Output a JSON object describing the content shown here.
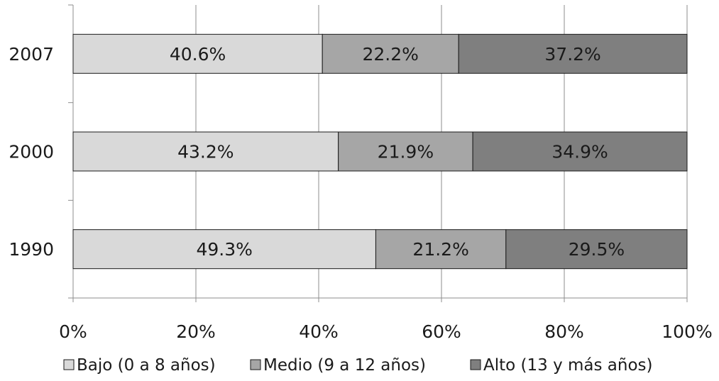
{
  "chart_data": {
    "type": "bar",
    "orientation": "horizontal",
    "stacked": true,
    "categories": [
      "2007",
      "2000",
      "1990"
    ],
    "series": [
      {
        "name": "Bajo (0 a 8 años)",
        "values": [
          40.6,
          43.2,
          49.3
        ],
        "color": "#d9d9d9"
      },
      {
        "name": "Medio (9 a 12 años)",
        "values": [
          22.2,
          21.9,
          21.2
        ],
        "color": "#a6a6a6"
      },
      {
        "name": "Alto (13 y más años)",
        "values": [
          37.2,
          34.9,
          29.5
        ],
        "color": "#7f7f7f"
      }
    ],
    "data_labels": [
      [
        "40.6%",
        "22.2%",
        "37.2%"
      ],
      [
        "43.2%",
        "21.9%",
        "34.9%"
      ],
      [
        "49.3%",
        "21.2%",
        "29.5%"
      ]
    ],
    "x_ticks": [
      "0%",
      "20%",
      "40%",
      "60%",
      "80%",
      "100%"
    ],
    "xlim": [
      0,
      100
    ],
    "grid": true,
    "legend_position": "bottom",
    "title": "",
    "xlabel": "",
    "ylabel": ""
  }
}
